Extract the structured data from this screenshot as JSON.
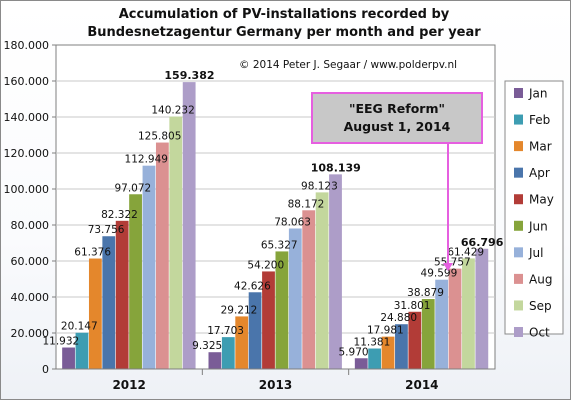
{
  "chart_data": {
    "type": "bar",
    "title": "Accumulation of PV-installations recorded by",
    "subtitle": "Bundesnetzagentur  Germany per month and per year",
    "copyright": "© 2014 Peter J. Segaar / www.polderpv.nl",
    "categories": [
      "2012",
      "2013",
      "2014"
    ],
    "ylim": [
      0,
      180000
    ],
    "yticks": [
      "0",
      "20.000",
      "40.000",
      "60.000",
      "80.000",
      "100.000",
      "120.000",
      "140.000",
      "160.000",
      "180.000"
    ],
    "grid": true,
    "legend_position": "right",
    "series": [
      {
        "name": "Jan",
        "color": "#7a5c97",
        "values": [
          11932,
          9325,
          5970
        ],
        "labels": [
          "11.932",
          "9.325",
          "5.970"
        ]
      },
      {
        "name": "Feb",
        "color": "#3d9db2",
        "values": [
          20147,
          17703,
          11381
        ],
        "labels": [
          "20.147",
          "17.703",
          "11.381"
        ]
      },
      {
        "name": "Mar",
        "color": "#e4872c",
        "values": [
          61376,
          29212,
          17981
        ],
        "labels": [
          "61.376",
          "29.212",
          "17.981"
        ]
      },
      {
        "name": "Apr",
        "color": "#4a75ab",
        "values": [
          73756,
          42626,
          24880
        ],
        "labels": [
          "73.756",
          "42.626",
          "24.880"
        ]
      },
      {
        "name": "May",
        "color": "#b23c37",
        "values": [
          82322,
          54200,
          31801
        ],
        "labels": [
          "82.322",
          "54.200",
          "31.801"
        ]
      },
      {
        "name": "Jun",
        "color": "#86a43b",
        "values": [
          97072,
          65327,
          38879
        ],
        "labels": [
          "97.072",
          "65.327",
          "38.879"
        ]
      },
      {
        "name": "Jul",
        "color": "#97b1da",
        "values": [
          112949,
          78063,
          49599
        ],
        "labels": [
          "112.949",
          "78.063",
          "49.599"
        ]
      },
      {
        "name": "Aug",
        "color": "#db9191",
        "values": [
          125805,
          88172,
          55757
        ],
        "labels": [
          "125.805",
          "88.172",
          "55.757"
        ]
      },
      {
        "name": "Sep",
        "color": "#c3d79d",
        "values": [
          140232,
          98123,
          61429
        ],
        "labels": [
          "140.232",
          "98.123",
          "61.429"
        ]
      },
      {
        "name": "Oct",
        "color": "#ad9dc8",
        "values": [
          159382,
          108139,
          66796
        ],
        "labels": [
          "159.382",
          "108.139",
          "66.796"
        ]
      }
    ],
    "annotation": {
      "line1": "\"EEG Reform\"",
      "line2": "August 1, 2014",
      "border_color": "#e65fe0",
      "fill_color": "#c8c8c8"
    }
  }
}
